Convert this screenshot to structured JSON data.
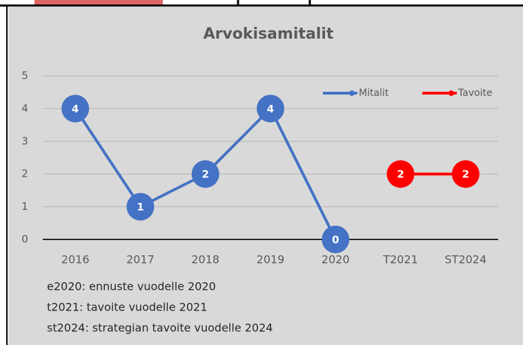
{
  "chart_data": {
    "type": "line",
    "title": "Arvokisamitalit",
    "categories": [
      "2016",
      "2017",
      "2018",
      "2019",
      "2020",
      "T2021",
      "ST2024"
    ],
    "series": [
      {
        "name": "Mitalit",
        "color": "#4472c4",
        "values": [
          4,
          1,
          2,
          4,
          0,
          null,
          null
        ]
      },
      {
        "name": "Tavoite",
        "color": "#ff0000",
        "values": [
          null,
          null,
          null,
          null,
          null,
          2,
          2
        ]
      }
    ],
    "ylim": [
      0,
      5
    ],
    "yticks": [
      0,
      1,
      2,
      3,
      4,
      5
    ],
    "grid": true,
    "legend": "top-right",
    "notes": [
      "e2020: ennuste vuodelle 2020",
      "t2021: tavoite vuodelle 2021",
      "st2024: strategian tavoite vuodelle 2024"
    ]
  }
}
